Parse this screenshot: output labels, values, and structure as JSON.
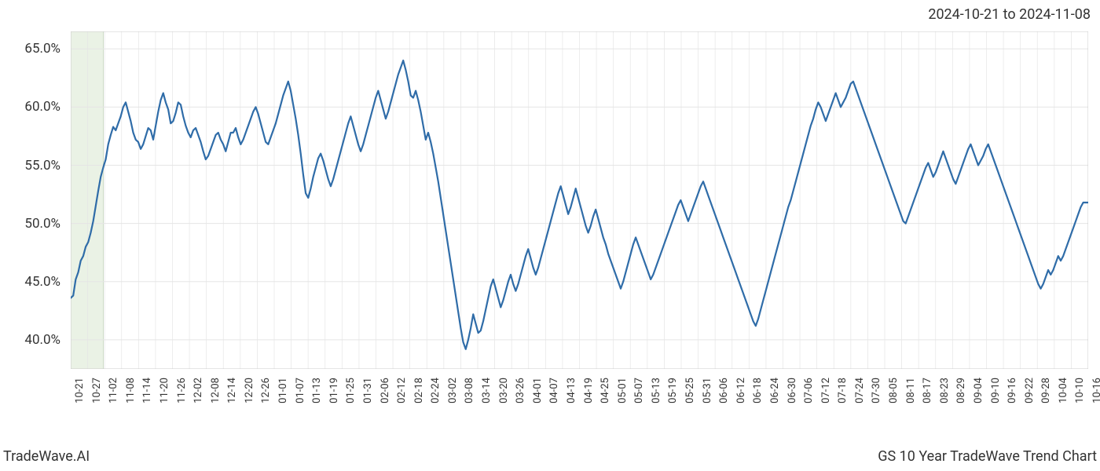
{
  "header": {
    "date_range": "2024-10-21 to 2024-11-08"
  },
  "footer": {
    "left": "TradeWave.AI",
    "right": "GS 10 Year TradeWave Trend Chart"
  },
  "chart": {
    "type": "line",
    "background_color": "#ffffff",
    "grid_color": "#e5e5e5",
    "axis_color": "#cccccc",
    "line_color": "#2f6ca8",
    "line_width": 2.2,
    "highlight_fill": "#d9e8d0",
    "highlight_opacity": 0.55,
    "highlight_border": "#b8ceb0",
    "ylim": [
      37.5,
      66.5
    ],
    "ytick_values": [
      40.0,
      45.0,
      50.0,
      55.0,
      60.0,
      65.0
    ],
    "ytick_labels": [
      "40.0%",
      "45.0%",
      "50.0%",
      "55.0%",
      "60.0%",
      "65.0%"
    ],
    "y_label_fontsize": 17,
    "x_label_fontsize": 13,
    "xtick_labels": [
      "10-21",
      "10-27",
      "11-02",
      "11-08",
      "11-14",
      "11-20",
      "11-26",
      "12-02",
      "12-08",
      "12-14",
      "12-20",
      "12-26",
      "01-01",
      "01-07",
      "01-13",
      "01-19",
      "01-25",
      "01-31",
      "02-06",
      "02-12",
      "02-18",
      "02-24",
      "03-02",
      "03-08",
      "03-14",
      "03-20",
      "03-26",
      "04-01",
      "04-07",
      "04-13",
      "04-19",
      "04-25",
      "05-01",
      "05-07",
      "05-13",
      "05-19",
      "05-25",
      "05-31",
      "06-06",
      "06-12",
      "06-18",
      "06-24",
      "06-30",
      "07-06",
      "07-12",
      "07-18",
      "07-24",
      "07-30",
      "08-05",
      "08-11",
      "08-17",
      "08-23",
      "08-29",
      "09-04",
      "09-10",
      "09-16",
      "09-22",
      "09-28",
      "10-04",
      "10-10",
      "10-16"
    ],
    "highlight_start_index": 0,
    "highlight_end_index": 13,
    "series": [
      43.6,
      43.8,
      45.2,
      45.8,
      46.8,
      47.2,
      48.0,
      48.4,
      49.2,
      50.2,
      51.5,
      52.8,
      54.0,
      54.8,
      55.5,
      56.8,
      57.6,
      58.3,
      58.0,
      58.6,
      59.2,
      60.0,
      60.4,
      59.6,
      58.8,
      57.8,
      57.2,
      57.0,
      56.4,
      56.8,
      57.5,
      58.2,
      58.0,
      57.2,
      58.4,
      59.6,
      60.6,
      61.2,
      60.4,
      59.8,
      58.6,
      58.8,
      59.5,
      60.4,
      60.2,
      59.2,
      58.4,
      57.8,
      57.4,
      58.0,
      58.2,
      57.6,
      57.0,
      56.2,
      55.5,
      55.8,
      56.4,
      57.0,
      57.6,
      57.8,
      57.2,
      56.8,
      56.2,
      57.0,
      57.8,
      57.8,
      58.2,
      57.4,
      56.8,
      57.2,
      57.8,
      58.4,
      59.0,
      59.6,
      60.0,
      59.4,
      58.6,
      57.8,
      57.0,
      56.8,
      57.4,
      58.0,
      58.6,
      59.4,
      60.2,
      61.0,
      61.6,
      62.2,
      61.4,
      60.2,
      59.0,
      57.6,
      56.0,
      54.2,
      52.6,
      52.2,
      53.0,
      54.0,
      54.8,
      55.6,
      56.0,
      55.4,
      54.6,
      53.8,
      53.2,
      53.8,
      54.6,
      55.4,
      56.2,
      57.0,
      57.8,
      58.6,
      59.2,
      58.4,
      57.6,
      56.8,
      56.2,
      56.8,
      57.6,
      58.4,
      59.2,
      60.0,
      60.8,
      61.4,
      60.6,
      59.8,
      59.0,
      59.6,
      60.4,
      61.2,
      62.0,
      62.8,
      63.4,
      64.0,
      63.2,
      62.2,
      61.0,
      60.8,
      61.4,
      60.6,
      59.6,
      58.4,
      57.2,
      57.8,
      57.0,
      56.0,
      54.8,
      53.6,
      52.2,
      50.8,
      49.4,
      48.0,
      46.6,
      45.2,
      43.8,
      42.4,
      41.0,
      39.8,
      39.2,
      40.0,
      41.0,
      42.2,
      41.4,
      40.6,
      40.8,
      41.6,
      42.6,
      43.6,
      44.6,
      45.2,
      44.4,
      43.6,
      42.8,
      43.4,
      44.2,
      45.0,
      45.6,
      44.8,
      44.2,
      44.8,
      45.6,
      46.4,
      47.2,
      47.8,
      47.0,
      46.2,
      45.6,
      46.2,
      47.0,
      47.8,
      48.6,
      49.4,
      50.2,
      51.0,
      51.8,
      52.6,
      53.2,
      52.4,
      51.6,
      50.8,
      51.4,
      52.2,
      53.0,
      52.2,
      51.4,
      50.6,
      49.8,
      49.2,
      49.8,
      50.6,
      51.2,
      50.4,
      49.6,
      48.8,
      48.2,
      47.4,
      46.8,
      46.2,
      45.6,
      45.0,
      44.4,
      45.0,
      45.8,
      46.6,
      47.4,
      48.2,
      48.8,
      48.2,
      47.6,
      47.0,
      46.4,
      45.8,
      45.2,
      45.6,
      46.2,
      46.8,
      47.4,
      48.0,
      48.6,
      49.2,
      49.8,
      50.4,
      51.0,
      51.6,
      52.0,
      51.4,
      50.8,
      50.2,
      50.8,
      51.4,
      52.0,
      52.6,
      53.2,
      53.6,
      53.0,
      52.4,
      51.8,
      51.2,
      50.6,
      50.0,
      49.4,
      48.8,
      48.2,
      47.6,
      47.0,
      46.4,
      45.8,
      45.2,
      44.6,
      44.0,
      43.4,
      42.8,
      42.2,
      41.6,
      41.2,
      41.8,
      42.6,
      43.4,
      44.2,
      45.0,
      45.8,
      46.6,
      47.4,
      48.2,
      49.0,
      49.8,
      50.6,
      51.4,
      52.0,
      52.8,
      53.6,
      54.4,
      55.2,
      56.0,
      56.8,
      57.6,
      58.4,
      59.0,
      59.8,
      60.4,
      60.0,
      59.4,
      58.8,
      59.4,
      60.0,
      60.6,
      61.2,
      60.6,
      60.0,
      60.4,
      60.8,
      61.4,
      62.0,
      62.2,
      61.6,
      61.0,
      60.4,
      59.8,
      59.2,
      58.6,
      58.0,
      57.4,
      56.8,
      56.2,
      55.6,
      55.0,
      54.4,
      53.8,
      53.2,
      52.6,
      52.0,
      51.4,
      50.8,
      50.2,
      50.0,
      50.6,
      51.2,
      51.8,
      52.4,
      53.0,
      53.6,
      54.2,
      54.8,
      55.2,
      54.6,
      54.0,
      54.4,
      55.0,
      55.6,
      56.2,
      55.6,
      55.0,
      54.4,
      53.8,
      53.4,
      54.0,
      54.6,
      55.2,
      55.8,
      56.4,
      56.8,
      56.2,
      55.6,
      55.0,
      55.4,
      55.8,
      56.4,
      56.8,
      56.2,
      55.6,
      55.0,
      54.4,
      53.8,
      53.2,
      52.6,
      52.0,
      51.4,
      50.8,
      50.2,
      49.6,
      49.0,
      48.4,
      47.8,
      47.2,
      46.6,
      46.0,
      45.4,
      44.8,
      44.4,
      44.8,
      45.4,
      46.0,
      45.6,
      46.0,
      46.6,
      47.2,
      46.8,
      47.2,
      47.8,
      48.4,
      49.0,
      49.6,
      50.2,
      50.8,
      51.4,
      51.8,
      51.8,
      51.8
    ]
  }
}
